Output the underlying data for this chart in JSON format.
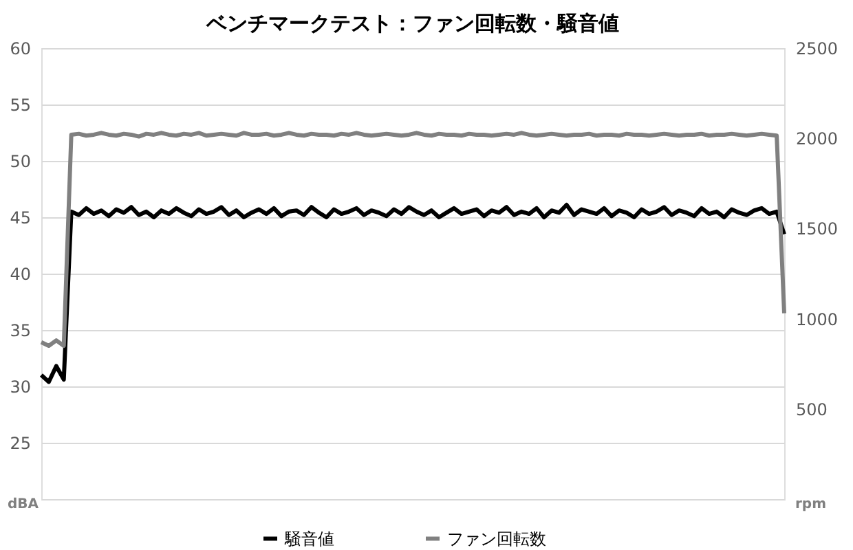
{
  "chart_data": {
    "type": "line",
    "title": "ベンチマークテスト：ファン回転数・騒音値",
    "ylabel": "dBA",
    "y2label": "rpm",
    "categories": [
      null,
      null,
      null,
      null,
      null,
      null,
      null,
      null,
      null,
      null,
      null,
      null,
      null,
      null,
      null,
      null,
      null,
      null,
      null,
      null,
      null,
      null,
      null,
      null,
      null,
      null,
      null,
      null,
      null,
      null,
      null,
      null,
      null,
      null,
      null,
      null,
      null,
      null,
      null,
      null,
      null,
      null,
      null,
      null,
      null,
      null,
      null,
      null,
      null,
      null,
      null,
      null,
      null,
      null,
      null,
      null,
      null,
      null,
      null,
      null,
      null,
      null,
      null,
      null,
      null,
      null,
      null,
      null,
      null,
      null,
      null,
      null,
      null,
      null,
      null,
      null,
      null,
      null,
      null,
      null,
      null,
      null,
      null,
      null,
      null,
      null,
      null,
      null,
      null,
      null,
      null,
      null,
      null,
      null,
      null,
      null,
      null,
      null,
      null,
      null
    ],
    "series": [
      {
        "name": "騒音値",
        "color": "#000000",
        "values": [
          31.0,
          30.4,
          31.8,
          30.6,
          45.5,
          45.2,
          45.8,
          45.3,
          45.6,
          45.1,
          45.7,
          45.4,
          45.9,
          45.2,
          45.5,
          45.0,
          45.6,
          45.3,
          45.8,
          45.4,
          45.1,
          45.7,
          45.3,
          45.5,
          45.9,
          45.2,
          45.6,
          45.0,
          45.4,
          45.7,
          45.3,
          45.8,
          45.1,
          45.5,
          45.6,
          45.2,
          45.9,
          45.4,
          45.0,
          45.7,
          45.3,
          45.5,
          45.8,
          45.2,
          45.6,
          45.4,
          45.1,
          45.7,
          45.3,
          45.9,
          45.5,
          45.2,
          45.6,
          45.0,
          45.4,
          45.8,
          45.3,
          45.5,
          45.7,
          45.1,
          45.6,
          45.4,
          45.9,
          45.2,
          45.5,
          45.3,
          45.8,
          45.0,
          45.6,
          45.4,
          46.1,
          45.2,
          45.7,
          45.5,
          45.3,
          45.8,
          45.1,
          45.6,
          45.4,
          45.0,
          45.7,
          45.3,
          45.5,
          45.9,
          45.2,
          45.6,
          45.4,
          45.1,
          45.8,
          45.3,
          45.5,
          45.0,
          45.7,
          45.4,
          45.2,
          45.6,
          45.8,
          45.3,
          45.5,
          43.5
        ]
      },
      {
        "name": "ファン回転数",
        "color": "#808080",
        "axis": "y2",
        "values": [
          870,
          850,
          880,
          850,
          2020,
          2025,
          2015,
          2020,
          2030,
          2020,
          2015,
          2025,
          2020,
          2010,
          2025,
          2020,
          2030,
          2020,
          2015,
          2025,
          2020,
          2030,
          2015,
          2020,
          2025,
          2020,
          2015,
          2030,
          2020,
          2020,
          2025,
          2015,
          2020,
          2030,
          2020,
          2015,
          2025,
          2020,
          2020,
          2015,
          2025,
          2020,
          2030,
          2020,
          2015,
          2020,
          2025,
          2020,
          2015,
          2020,
          2030,
          2020,
          2015,
          2025,
          2020,
          2020,
          2015,
          2025,
          2020,
          2020,
          2015,
          2020,
          2025,
          2020,
          2030,
          2020,
          2015,
          2020,
          2025,
          2020,
          2015,
          2020,
          2020,
          2025,
          2015,
          2020,
          2020,
          2015,
          2025,
          2020,
          2020,
          2015,
          2020,
          2025,
          2020,
          2015,
          2020,
          2020,
          2025,
          2015,
          2020,
          2020,
          2025,
          2020,
          2015,
          2020,
          2025,
          2020,
          2015,
          1030
        ]
      }
    ],
    "ylim": [
      20,
      60
    ],
    "yticks": [
      25,
      30,
      35,
      40,
      45,
      50,
      55,
      60
    ],
    "y2lim": [
      0,
      2500
    ],
    "y2ticks": [
      500,
      1000,
      1500,
      2000,
      2500
    ],
    "grid": "y",
    "legend": "bottom",
    "line_style": "solid"
  }
}
